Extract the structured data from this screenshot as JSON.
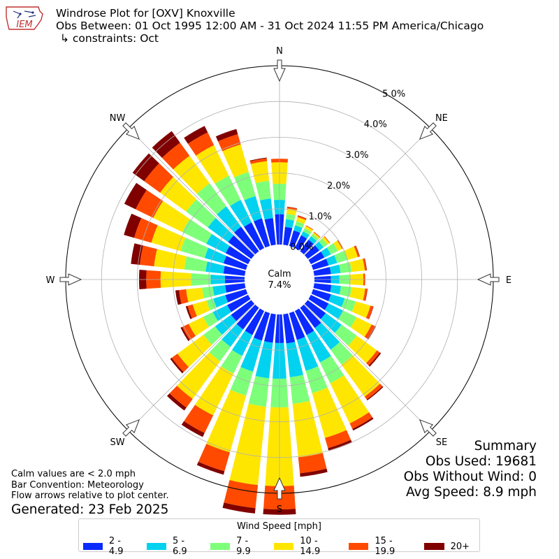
{
  "header": {
    "title": "Windrose Plot for [OXV] Knoxville",
    "subtitle": "Obs Between: 01 Oct 1995 12:00 AM - 31 Oct 2024 11:55 PM America/Chicago",
    "constraints": "↳ constraints: Oct",
    "logo_text": "IEM"
  },
  "summary": {
    "heading": "Summary",
    "obs_used": "Obs Used: 19681",
    "obs_without_wind": "Obs Without Wind: 0",
    "avg_speed": "Avg Speed: 8.9 mph"
  },
  "notes": {
    "calm_note": "Calm values are < 2.0 mph",
    "bar_convention": "Bar Convention: Meteorology",
    "flow_arrows": "Flow arrows relative to plot center.",
    "generated": "Generated: 23 Feb 2025"
  },
  "chart_data": {
    "type": "windrose",
    "calm_label": "Calm",
    "calm_value": "7.4%",
    "radial_unit": "%",
    "radial_max": 5.0,
    "radial_ticks": [
      "0.0%",
      "1.0%",
      "2.0%",
      "3.0%",
      "4.0%",
      "5.0%"
    ],
    "directions": [
      "N",
      "NE",
      "E",
      "SE",
      "S",
      "SW",
      "W",
      "NW"
    ],
    "legend_title": "Wind Speed [mph]",
    "speed_bins": [
      {
        "label": "2 - 4.9",
        "color": "#0a2aff"
      },
      {
        "label": "5 - 6.9",
        "color": "#00d2f0"
      },
      {
        "label": "7 - 9.9",
        "color": "#7dff7a"
      },
      {
        "label": "10 - 14.9",
        "color": "#ffe600"
      },
      {
        "label": "15 - 19.9",
        "color": "#ff4a00"
      },
      {
        "label": "20+",
        "color": "#800000"
      }
    ],
    "sectors": [
      {
        "dir_deg": 0,
        "values": [
          0.85,
          0.4,
          0.45,
          0.6,
          0.1,
          0.0
        ]
      },
      {
        "dir_deg": 10,
        "values": [
          0.5,
          0.22,
          0.15,
          0.15,
          0.04,
          0.01
        ]
      },
      {
        "dir_deg": 20,
        "values": [
          0.45,
          0.15,
          0.12,
          0.12,
          0.04,
          0.01
        ]
      },
      {
        "dir_deg": 30,
        "values": [
          0.4,
          0.12,
          0.1,
          0.07,
          0.02,
          0.0
        ]
      },
      {
        "dir_deg": 40,
        "values": [
          0.4,
          0.12,
          0.08,
          0.05,
          0.02,
          0.0
        ]
      },
      {
        "dir_deg": 50,
        "values": [
          0.4,
          0.15,
          0.13,
          0.07,
          0.02,
          0.0
        ]
      },
      {
        "dir_deg": 60,
        "values": [
          0.42,
          0.2,
          0.22,
          0.13,
          0.03,
          0.0
        ]
      },
      {
        "dir_deg": 70,
        "values": [
          0.45,
          0.25,
          0.3,
          0.3,
          0.05,
          0.01
        ]
      },
      {
        "dir_deg": 80,
        "values": [
          0.47,
          0.27,
          0.31,
          0.37,
          0.05,
          0.01
        ]
      },
      {
        "dir_deg": 90,
        "values": [
          0.46,
          0.24,
          0.3,
          0.37,
          0.05,
          0.0
        ]
      },
      {
        "dir_deg": 100,
        "values": [
          0.48,
          0.27,
          0.3,
          0.38,
          0.06,
          0.01
        ]
      },
      {
        "dir_deg": 110,
        "values": [
          0.52,
          0.4,
          0.32,
          0.43,
          0.08,
          0.01
        ]
      },
      {
        "dir_deg": 120,
        "values": [
          0.55,
          0.45,
          0.42,
          0.47,
          0.1,
          0.03
        ]
      },
      {
        "dir_deg": 130,
        "values": [
          0.62,
          0.55,
          0.52,
          0.7,
          0.1,
          0.04
        ]
      },
      {
        "dir_deg": 140,
        "values": [
          0.7,
          0.75,
          0.52,
          1.1,
          0.1,
          0.03
        ]
      },
      {
        "dir_deg": 150,
        "values": [
          0.75,
          0.85,
          0.65,
          1.25,
          0.17,
          0.05
        ]
      },
      {
        "dir_deg": 160,
        "values": [
          0.78,
          0.9,
          0.65,
          1.3,
          0.3,
          0.08
        ]
      },
      {
        "dir_deg": 170,
        "values": [
          0.82,
          0.95,
          0.75,
          1.5,
          0.45,
          0.1
        ]
      },
      {
        "dir_deg": 180,
        "values": [
          0.8,
          1.0,
          0.8,
          2.2,
          0.65,
          0.15
        ]
      },
      {
        "dir_deg": 190,
        "values": [
          0.8,
          1.0,
          0.8,
          2.2,
          0.65,
          0.15
        ]
      },
      {
        "dir_deg": 200,
        "values": [
          0.8,
          0.9,
          0.7,
          1.65,
          0.55,
          0.1
        ]
      },
      {
        "dir_deg": 210,
        "values": [
          0.75,
          0.65,
          0.55,
          1.3,
          0.55,
          0.12
        ]
      },
      {
        "dir_deg": 220,
        "values": [
          0.75,
          0.6,
          0.5,
          1.3,
          0.3,
          0.1
        ]
      },
      {
        "dir_deg": 230,
        "values": [
          0.7,
          0.55,
          0.4,
          0.9,
          0.2,
          0.05
        ]
      },
      {
        "dir_deg": 240,
        "values": [
          0.65,
          0.45,
          0.3,
          0.45,
          0.2,
          0.05
        ]
      },
      {
        "dir_deg": 250,
        "values": [
          0.6,
          0.35,
          0.2,
          0.4,
          0.15,
          0.05
        ]
      },
      {
        "dir_deg": 260,
        "values": [
          0.55,
          0.35,
          0.3,
          0.45,
          0.2,
          0.1
        ]
      },
      {
        "dir_deg": 270,
        "values": [
          0.55,
          0.4,
          0.55,
          0.85,
          0.4,
          0.2
        ]
      },
      {
        "dir_deg": 280,
        "values": [
          0.6,
          0.5,
          0.6,
          0.85,
          0.4,
          0.25
        ]
      },
      {
        "dir_deg": 290,
        "values": [
          0.65,
          0.55,
          0.7,
          0.85,
          0.5,
          0.3
        ]
      },
      {
        "dir_deg": 300,
        "values": [
          0.7,
          0.6,
          0.75,
          0.9,
          0.55,
          0.35
        ]
      },
      {
        "dir_deg": 310,
        "values": [
          0.8,
          0.7,
          0.75,
          0.9,
          0.55,
          0.4
        ]
      },
      {
        "dir_deg": 320,
        "values": [
          0.85,
          0.7,
          0.8,
          0.95,
          0.45,
          0.4
        ]
      },
      {
        "dir_deg": 330,
        "values": [
          0.8,
          0.7,
          0.75,
          0.95,
          0.4,
          0.2
        ]
      },
      {
        "dir_deg": 340,
        "values": [
          0.8,
          0.65,
          0.7,
          0.8,
          0.3,
          0.15
        ]
      },
      {
        "dir_deg": 350,
        "values": [
          0.75,
          0.55,
          0.5,
          0.55,
          0.08,
          0.02
        ]
      }
    ]
  }
}
